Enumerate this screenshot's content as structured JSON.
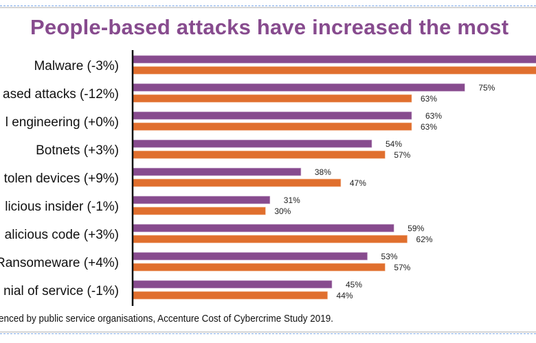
{
  "title": "People-based attacks have increased the most",
  "footer": "enced by public service organisations, Accenture Cost of Cybercrime Study 2019.",
  "colors": {
    "series1": "#874b8e",
    "series2": "#e06f2e",
    "title": "#874b8e"
  },
  "chart_data": {
    "type": "bar",
    "orientation": "horizontal",
    "title": "People-based attacks have increased the most",
    "categories": [
      "Malware (-3%)",
      "ased attacks (-12%)",
      "l engineering (+0%)",
      "Botnets (+3%)",
      "tolen devices (+9%)",
      "licious insider (-1%)",
      "alicious code (+3%)",
      "Ransomeware (+4%)",
      "nial of service (-1%)"
    ],
    "series": [
      {
        "values": [
          98,
          75,
          63,
          54,
          38,
          31,
          59,
          53,
          45
        ],
        "labels": [
          "",
          "75%",
          "63%",
          "54%",
          "38%",
          "31%",
          "59%",
          "53%",
          "45%"
        ],
        "color": "#874b8e"
      },
      {
        "values": [
          95,
          63,
          63,
          57,
          47,
          30,
          62,
          57,
          44
        ],
        "labels": [
          "",
          "63%",
          "63%",
          "57%",
          "47%",
          "30%",
          "62%",
          "57%",
          "44%"
        ],
        "color": "#e06f2e"
      }
    ],
    "xlim": [
      0,
      100
    ],
    "grid": false
  }
}
